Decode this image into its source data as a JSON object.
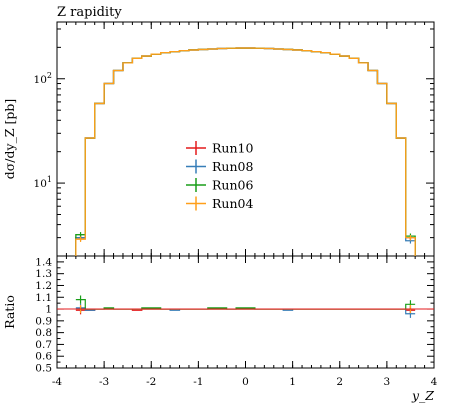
{
  "chart_data": {
    "type": "line",
    "title": "Z rapidity",
    "xlabel": "y_Z",
    "ylabel": "dσ/dy_Z [pb]",
    "ratio_ylabel": "Ratio",
    "xlim": [
      -4,
      4
    ],
    "ylim": [
      2,
      350
    ],
    "yscale": "log",
    "ratio_ylim": [
      0.5,
      1.45
    ],
    "legend_position": "center",
    "x_ticks": [
      "-4",
      "-3",
      "-2",
      "-1",
      "0",
      "1",
      "2",
      "3",
      "4"
    ],
    "y_ticks": [
      {
        "base": "10",
        "exp": "1",
        "value": 10
      },
      {
        "base": "10",
        "exp": "2",
        "value": 100
      }
    ],
    "ratio_ticks": [
      "0.5",
      "0.6",
      "0.7",
      "0.8",
      "0.9",
      "1",
      "1.1",
      "1.2",
      "1.3",
      "1.4"
    ],
    "bin_edges": [
      -3.6,
      -3.4,
      -3.2,
      -3.0,
      -2.8,
      -2.6,
      -2.4,
      -2.2,
      -2.0,
      -1.8,
      -1.6,
      -1.4,
      -1.2,
      -1.0,
      -0.8,
      -0.6,
      -0.4,
      -0.2,
      0.0,
      0.2,
      0.4,
      0.6,
      0.8,
      1.0,
      1.2,
      1.4,
      1.6,
      1.8,
      2.0,
      2.2,
      2.4,
      2.6,
      2.8,
      3.0,
      3.2,
      3.4,
      3.6
    ],
    "series": [
      {
        "name": "Run10",
        "color": "#e41a1c",
        "values": [
          3.0,
          27,
          58,
          90,
          120,
          142,
          157,
          165,
          172,
          178,
          182,
          186,
          189,
          191,
          193,
          195,
          196,
          197,
          197,
          196,
          195,
          193,
          191,
          189,
          186,
          182,
          178,
          172,
          165,
          157,
          142,
          120,
          90,
          58,
          27,
          3.0
        ],
        "ratio": [
          0.99,
          0.99,
          1.0,
          1.0,
          1.0,
          1.0,
          0.99,
          1.0,
          1.0,
          1.0,
          1.0,
          1.0,
          1.0,
          1.0,
          1.0,
          1.0,
          1.0,
          1.0,
          1.0,
          1.0,
          1.0,
          1.0,
          1.0,
          1.0,
          1.0,
          1.0,
          1.0,
          1.0,
          1.0,
          1.0,
          1.0,
          1.0,
          1.0,
          1.0,
          1.0,
          0.99
        ]
      },
      {
        "name": "Run08",
        "color": "#377eb8",
        "values": [
          3.0,
          27,
          58,
          90,
          120,
          142,
          157,
          165,
          172,
          178,
          182,
          186,
          189,
          191,
          193,
          195,
          196,
          197,
          197,
          196,
          195,
          193,
          191,
          189,
          186,
          182,
          178,
          172,
          165,
          157,
          142,
          120,
          90,
          58,
          27,
          2.8
        ],
        "ratio": [
          1.01,
          0.99,
          1.0,
          1.0,
          1.0,
          1.0,
          1.0,
          1.0,
          1.0,
          1.0,
          0.99,
          1.0,
          1.0,
          1.0,
          1.0,
          1.0,
          1.0,
          1.0,
          1.0,
          1.0,
          1.0,
          1.0,
          0.99,
          1.0,
          1.0,
          1.0,
          1.0,
          1.0,
          1.0,
          1.0,
          1.0,
          1.0,
          1.0,
          1.0,
          1.0,
          0.96
        ]
      },
      {
        "name": "Run06",
        "color": "#1a9e1a",
        "values": [
          3.2,
          27,
          58,
          90,
          120,
          142,
          157,
          165,
          172,
          178,
          182,
          186,
          189,
          191,
          193,
          195,
          196,
          197,
          197,
          196,
          195,
          193,
          191,
          189,
          186,
          182,
          178,
          172,
          165,
          157,
          142,
          120,
          90,
          58,
          27,
          3.1
        ],
        "ratio": [
          1.08,
          1.0,
          1.0,
          1.01,
          1.0,
          1.0,
          1.0,
          1.01,
          1.01,
          1.0,
          1.0,
          1.0,
          1.0,
          1.0,
          1.01,
          1.01,
          1.0,
          1.01,
          1.01,
          1.0,
          1.0,
          1.0,
          1.0,
          1.0,
          1.0,
          1.0,
          1.0,
          1.0,
          1.0,
          1.0,
          1.0,
          1.0,
          1.0,
          1.0,
          1.0,
          1.04
        ]
      },
      {
        "name": "Run04",
        "color": "#ff9f1a",
        "values": [
          2.9,
          27,
          58,
          90,
          120,
          142,
          157,
          165,
          172,
          178,
          182,
          186,
          189,
          191,
          193,
          195,
          196,
          197,
          197,
          196,
          195,
          193,
          191,
          189,
          186,
          182,
          178,
          172,
          165,
          157,
          142,
          120,
          90,
          58,
          27,
          3.0
        ],
        "ratio": [
          1.0,
          1.0,
          1.0,
          1.0,
          1.0,
          1.0,
          1.0,
          1.0,
          1.0,
          1.0,
          1.0,
          1.0,
          1.0,
          1.0,
          1.0,
          1.0,
          1.0,
          1.0,
          1.0,
          1.0,
          1.0,
          1.0,
          1.0,
          1.0,
          1.0,
          1.0,
          1.0,
          1.0,
          1.0,
          1.0,
          1.0,
          1.0,
          1.0,
          1.0,
          1.0,
          1.0
        ]
      }
    ]
  }
}
